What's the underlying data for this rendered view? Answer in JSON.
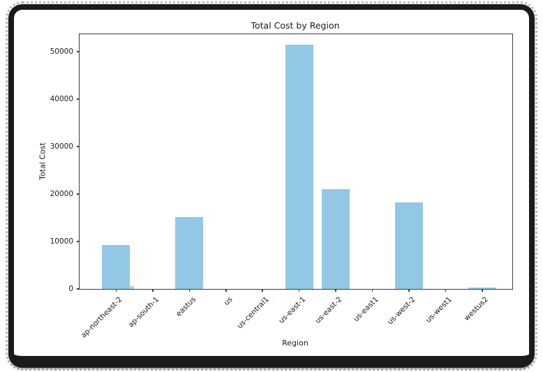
{
  "frame": {
    "style": "dark grunge rounded screenshot border"
  },
  "chart_data": {
    "type": "bar",
    "title": "Total Cost by Region",
    "xlabel": "Region",
    "ylabel": "Total Cost",
    "categories": [
      "ap-northeast-2",
      "ap-south-1",
      "eastus",
      "us",
      "us-central1",
      "us-east-1",
      "us-east-2",
      "us-east1",
      "us-west-2",
      "us-west1",
      "westus2"
    ],
    "values": [
      9200,
      0,
      15100,
      0,
      0,
      51500,
      21100,
      0,
      18200,
      0,
      250
    ],
    "extra_mark": {
      "category": "ap-northeast-2",
      "value": 600,
      "color": "#a9d5ec",
      "description": "thin residual step bar at right edge of ap-northeast-2 bar"
    },
    "yticks": [
      0,
      10000,
      20000,
      30000,
      40000,
      50000
    ],
    "ylim": [
      0,
      53700
    ],
    "bar_color": "#92c8e6",
    "axis_color": "#3c3c3c",
    "grid": false,
    "legend_position": "none",
    "x_tick_rotation_deg": 45
  }
}
